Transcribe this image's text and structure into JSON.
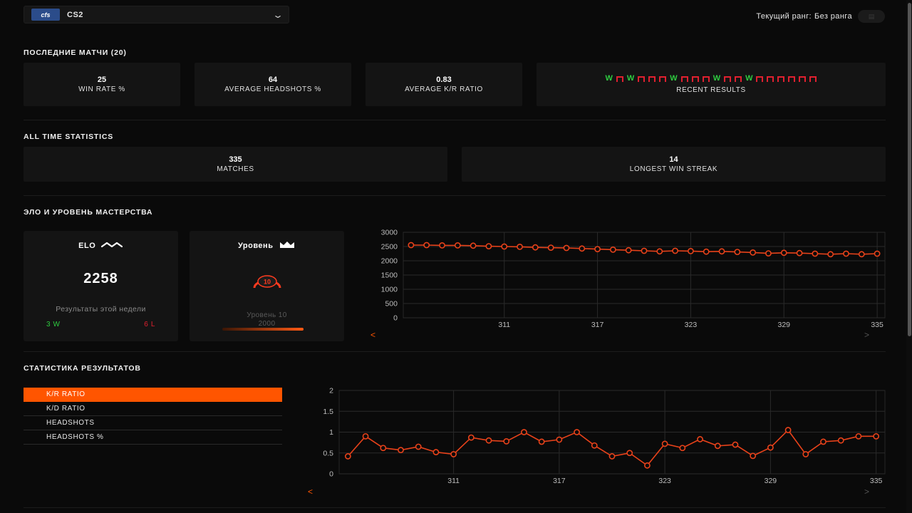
{
  "game": {
    "logo": "cfs",
    "name": "CS2"
  },
  "rank": {
    "label": "Текущий ранг:",
    "value": "Без ранга"
  },
  "recent": {
    "title": "ПОСЛЕДНИЕ МАТЧИ (20)",
    "win_rate": {
      "value": "25",
      "label": "WIN RATE %"
    },
    "headshots": {
      "value": "64",
      "label": "AVERAGE HEADSHOTS %"
    },
    "kr": {
      "value": "0.83",
      "label": "AVERAGE K/R RATIO"
    },
    "results_label": "RECENT RESULTS",
    "results": [
      "W",
      "L",
      "W",
      "L",
      "L",
      "L",
      "W",
      "L",
      "L",
      "L",
      "W",
      "L",
      "L",
      "W",
      "L",
      "L",
      "L",
      "L",
      "L",
      "L"
    ]
  },
  "alltime": {
    "title": "ALL TIME STATISTICS",
    "matches": {
      "value": "335",
      "label": "MATCHES"
    },
    "streak": {
      "value": "14",
      "label": "LONGEST WIN STREAK"
    }
  },
  "elo_section": {
    "title": "ЭЛО И УРОВЕНЬ МАСТЕРСТВА",
    "elo": {
      "label": "ELO",
      "value": "2258",
      "week_label": "Результаты этой недели",
      "wins": "3 W",
      "losses": "6 L"
    },
    "level": {
      "label": "Уровень",
      "badge": "10",
      "text": "Уровень 10",
      "elo": "2000",
      "progress": 1.0
    }
  },
  "results_section": {
    "title": "СТАТИСТИКА РЕЗУЛЬТАТОВ",
    "tabs": [
      "K/R RATIO",
      "K/D RATIO",
      "HEADSHOTS",
      "HEADSHOTS %"
    ],
    "active_tab": 0
  },
  "nav": {
    "prev": "<",
    "next": ">"
  },
  "colors": {
    "accent": "#ff5500",
    "win": "#2ecc40",
    "loss": "#e0202f",
    "line": "#e8421a"
  },
  "chart_data": [
    {
      "type": "line",
      "x_ticks": [
        311,
        317,
        323,
        329,
        335
      ],
      "x": [
        305,
        306,
        307,
        308,
        309,
        310,
        311,
        312,
        313,
        314,
        315,
        316,
        317,
        318,
        319,
        320,
        321,
        322,
        323,
        324,
        325,
        326,
        327,
        328,
        329,
        330,
        331,
        332,
        333,
        334,
        335
      ],
      "values": [
        2550,
        2550,
        2540,
        2540,
        2530,
        2510,
        2500,
        2490,
        2470,
        2460,
        2450,
        2430,
        2410,
        2390,
        2370,
        2350,
        2330,
        2350,
        2340,
        2320,
        2330,
        2310,
        2290,
        2260,
        2280,
        2270,
        2250,
        2230,
        2250,
        2230,
        2250
      ],
      "ylim": [
        0,
        3000
      ],
      "y_ticks": [
        0,
        500,
        1000,
        1500,
        2000,
        2500,
        3000
      ],
      "grid": true
    },
    {
      "type": "line",
      "x_ticks": [
        311,
        317,
        323,
        329,
        335
      ],
      "x": [
        305,
        306,
        307,
        308,
        309,
        310,
        311,
        312,
        313,
        314,
        315,
        316,
        317,
        318,
        319,
        320,
        321,
        322,
        323,
        324,
        325,
        326,
        327,
        328,
        329,
        330,
        331,
        332,
        333,
        334,
        335
      ],
      "values": [
        0.42,
        0.9,
        0.62,
        0.57,
        0.65,
        0.52,
        0.47,
        0.87,
        0.8,
        0.78,
        1.0,
        0.77,
        0.82,
        1.0,
        0.68,
        0.42,
        0.5,
        0.2,
        0.72,
        0.62,
        0.83,
        0.67,
        0.7,
        0.43,
        0.63,
        1.05,
        0.47,
        0.77,
        0.8,
        0.9,
        0.9
      ],
      "ylim": [
        0,
        2
      ],
      "y_ticks": [
        0,
        0.5,
        1,
        1.5,
        2
      ],
      "grid": true
    }
  ]
}
